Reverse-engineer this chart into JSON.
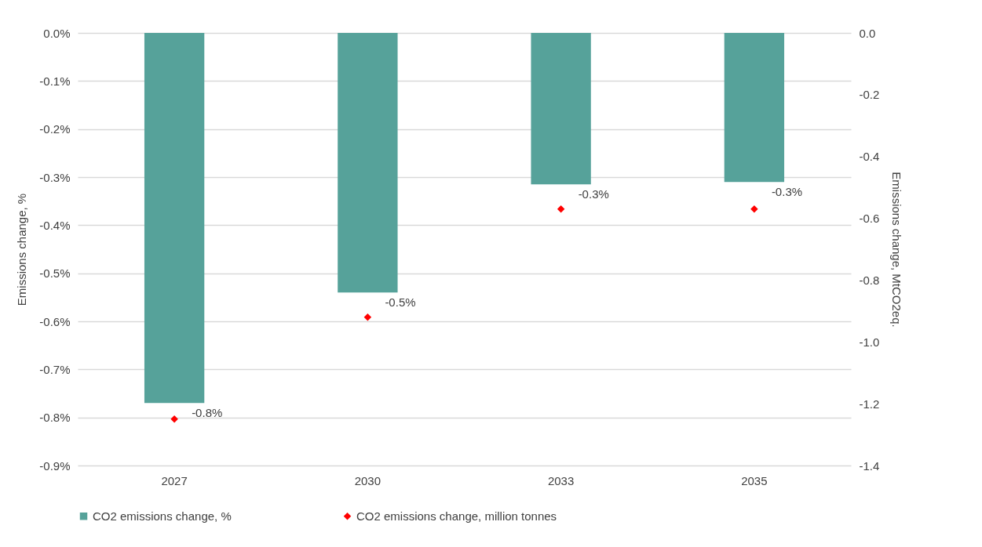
{
  "chart_data": {
    "type": "bar",
    "categories": [
      "2027",
      "2030",
      "2033",
      "2035"
    ],
    "ylabel": "Emissions change, %",
    "y2label": "Emissions change, MtCO2eq.",
    "ylim": [
      -0.9,
      0
    ],
    "yticks": [
      {
        "value": 0,
        "label": "0.0%"
      },
      {
        "value": -0.1,
        "label": "-0.1%"
      },
      {
        "value": -0.2,
        "label": "-0.2%"
      },
      {
        "value": -0.3,
        "label": "-0.3%"
      },
      {
        "value": -0.4,
        "label": "-0.4%"
      },
      {
        "value": -0.5,
        "label": "-0.5%"
      },
      {
        "value": -0.6,
        "label": "-0.6%"
      },
      {
        "value": -0.7,
        "label": "-0.7%"
      },
      {
        "value": -0.8,
        "label": "-0.8%"
      },
      {
        "value": -0.9,
        "label": "-0.9%"
      }
    ],
    "y2lim": [
      -1.4,
      0
    ],
    "y2ticks": [
      {
        "value": 0,
        "label": "0.0"
      },
      {
        "value": -0.2,
        "label": "-0.2"
      },
      {
        "value": -0.4,
        "label": "-0.4"
      },
      {
        "value": -0.6,
        "label": "-0.6"
      },
      {
        "value": -0.8,
        "label": "-0.8"
      },
      {
        "value": -1.0,
        "label": "-1.0"
      },
      {
        "value": -1.2,
        "label": "-1.2"
      },
      {
        "value": -1.4,
        "label": "-1.4"
      }
    ],
    "grid": "y",
    "legend": "bottom",
    "series": [
      {
        "name": "CO2 emissions change, %",
        "color": "#56a29a",
        "values": [
          -0.77,
          -0.54,
          -0.315,
          -0.31
        ],
        "value_labels": [
          "-0.8%",
          "-0.5%",
          "-0.3%",
          "-0.3%"
        ]
      },
      {
        "name": "CO2 emissions change, million tonnes",
        "type": "scatter",
        "axis": "y2",
        "marker": "diamond",
        "color": "#ff0000",
        "values": [
          -1.25,
          -0.92,
          -0.57,
          -0.57
        ]
      }
    ]
  }
}
